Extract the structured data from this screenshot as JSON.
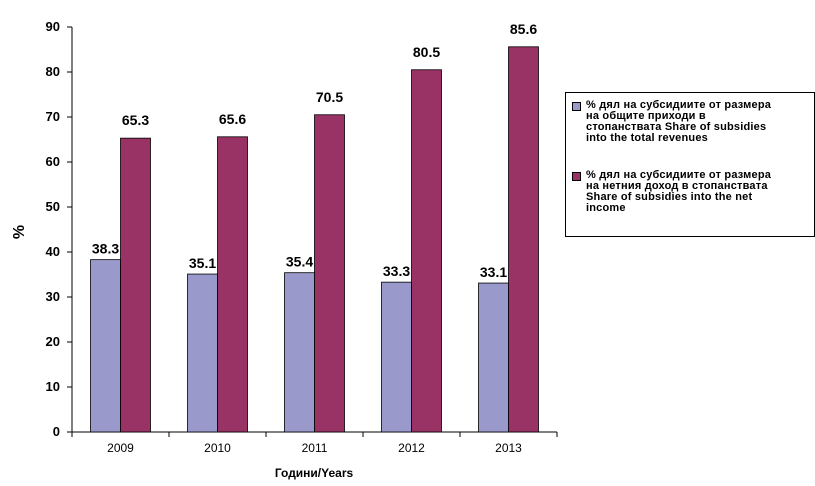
{
  "chart_data": {
    "type": "bar",
    "categories": [
      "2009",
      "2010",
      "2011",
      "2012",
      "2013"
    ],
    "series": [
      {
        "name": "% дял на субсидиите от размера\nна общите приходи в\nстопанствата Share of subsidies\ninto the total revenues",
        "values": [
          38.3,
          35.1,
          35.4,
          33.3,
          33.1
        ],
        "color": "#9999cc"
      },
      {
        "name": "% дял на субсидиите от размера\nна нетния доход в стопанствата\nShare of subsidies into the net\nincome",
        "values": [
          65.3,
          65.6,
          70.5,
          80.5,
          85.6
        ],
        "color": "#993366"
      }
    ],
    "data_labels": [
      [
        "38.3",
        "35.1",
        "35.4",
        "33.3",
        "33.1"
      ],
      [
        "65.3",
        "65.6",
        "70.5",
        "80.5",
        "85.6"
      ]
    ],
    "yticks": [
      "0",
      "10",
      "20",
      "30",
      "40",
      "50",
      "60",
      "70",
      "80",
      "90"
    ],
    "ylim": [
      0,
      90
    ],
    "xlabel": "Години/Years",
    "ylabel": "%",
    "grid": false,
    "legend_position": "right"
  }
}
